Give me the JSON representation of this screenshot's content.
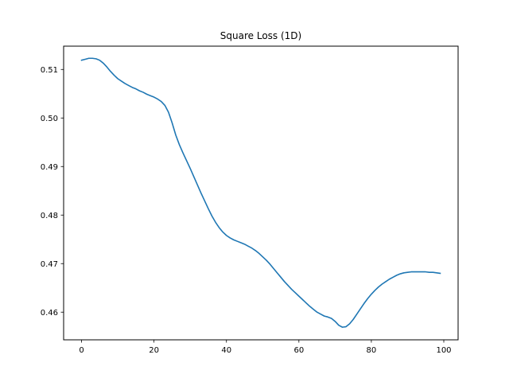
{
  "chart_data": {
    "type": "line",
    "title": "Square Loss (1D)",
    "xlabel": "",
    "ylabel": "",
    "xlim": [
      -4.95,
      103.95
    ],
    "ylim": [
      0.4543,
      0.5148
    ],
    "xticks": [
      0,
      20,
      40,
      60,
      80,
      100
    ],
    "yticks": [
      0.46,
      0.47,
      0.48,
      0.49,
      0.5,
      0.51
    ],
    "ytick_labels": [
      "0.46",
      "0.47",
      "0.48",
      "0.49",
      "0.50",
      "0.51"
    ],
    "grid": false,
    "line_color": "#1f77b4",
    "series": [
      {
        "x": [
          0,
          1,
          2,
          3,
          4,
          5,
          6,
          7,
          8,
          9,
          10,
          11,
          12,
          13,
          14,
          15,
          16,
          17,
          18,
          19,
          20,
          21,
          22,
          23,
          24,
          25,
          26,
          27,
          28,
          29,
          30,
          31,
          32,
          33,
          34,
          35,
          36,
          37,
          38,
          39,
          40,
          41,
          42,
          43,
          44,
          45,
          46,
          47,
          48,
          49,
          50,
          51,
          52,
          53,
          54,
          55,
          56,
          57,
          58,
          59,
          60,
          61,
          62,
          63,
          64,
          65,
          66,
          67,
          68,
          69,
          70,
          71,
          72,
          73,
          74,
          75,
          76,
          77,
          78,
          79,
          80,
          81,
          82,
          83,
          84,
          85,
          86,
          87,
          88,
          89,
          90,
          91,
          92,
          93,
          94,
          95,
          96,
          97,
          98,
          99
        ],
        "y": [
          0.5119,
          0.5121,
          0.5123,
          0.5123,
          0.5122,
          0.5119,
          0.5113,
          0.5105,
          0.5096,
          0.5088,
          0.5081,
          0.5076,
          0.5071,
          0.5067,
          0.5063,
          0.506,
          0.5056,
          0.5053,
          0.5049,
          0.5046,
          0.5043,
          0.5039,
          0.5034,
          0.5026,
          0.5012,
          0.499,
          0.4965,
          0.4945,
          0.4928,
          0.4912,
          0.4896,
          0.4879,
          0.4862,
          0.4845,
          0.4829,
          0.4813,
          0.4798,
          0.4785,
          0.4774,
          0.4765,
          0.4758,
          0.4753,
          0.4749,
          0.4746,
          0.4743,
          0.474,
          0.4736,
          0.4732,
          0.4727,
          0.4721,
          0.4714,
          0.4707,
          0.4699,
          0.469,
          0.4681,
          0.4672,
          0.4663,
          0.4655,
          0.4647,
          0.464,
          0.4633,
          0.4626,
          0.4619,
          0.4612,
          0.4606,
          0.46,
          0.4596,
          0.4592,
          0.459,
          0.4587,
          0.4581,
          0.4573,
          0.4569,
          0.457,
          0.4576,
          0.4585,
          0.4596,
          0.4607,
          0.4618,
          0.4628,
          0.4637,
          0.4645,
          0.4652,
          0.4658,
          0.4663,
          0.4668,
          0.4672,
          0.4676,
          0.4679,
          0.4681,
          0.4682,
          0.4683,
          0.4683,
          0.4683,
          0.4683,
          0.4683,
          0.4682,
          0.4682,
          0.4681,
          0.468
        ]
      }
    ]
  }
}
